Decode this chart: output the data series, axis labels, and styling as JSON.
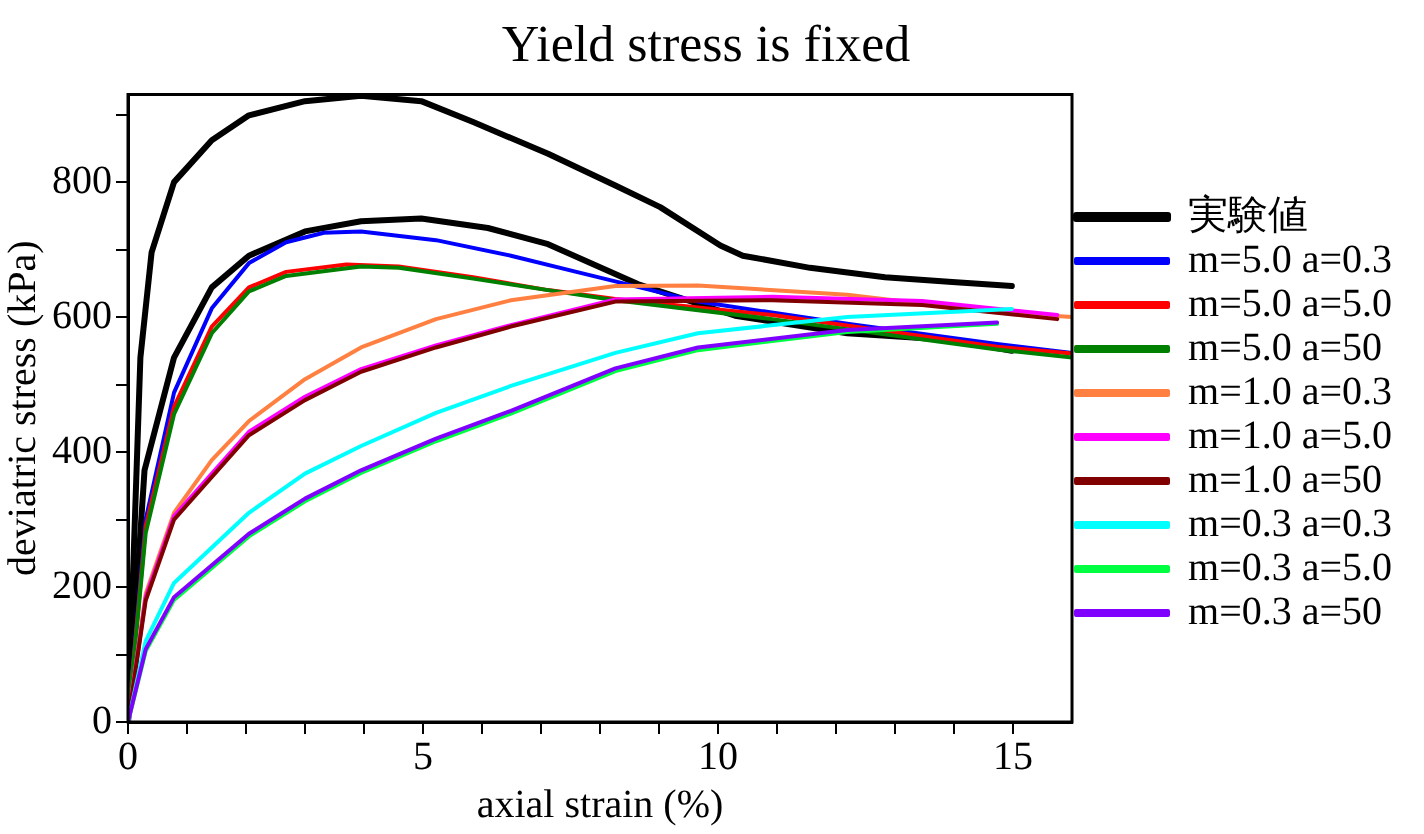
{
  "chart_data": {
    "type": "line",
    "title": "Yield stress is fixed",
    "xlabel": "axial strain (%)",
    "ylabel": "deviatric stress (kPa)",
    "xlim": [
      0,
      16
    ],
    "xticks": [
      0,
      {
        "value": 1,
        "label": null
      },
      {
        "value": 2,
        "label": null
      },
      {
        "value": 3,
        "label": null
      },
      {
        "value": 4,
        "label": null
      },
      5,
      {
        "value": 6,
        "label": null
      },
      {
        "value": 7,
        "label": null
      },
      {
        "value": 8,
        "label": null
      },
      {
        "value": 9,
        "label": null
      },
      10,
      {
        "value": 11,
        "label": null
      },
      {
        "value": 12,
        "label": null
      },
      {
        "value": 13,
        "label": null
      },
      {
        "value": 14,
        "label": null
      },
      15
    ],
    "ylim": [
      0,
      930
    ],
    "yticks": [
      0,
      {
        "value": 100,
        "label": null
      },
      200,
      {
        "value": 300,
        "label": null
      },
      400,
      {
        "value": 500,
        "label": null
      },
      600,
      {
        "value": 700,
        "label": null
      },
      800,
      {
        "value": 900,
        "label": null
      }
    ],
    "grid": false,
    "legend": "right",
    "marker": "none",
    "line_style": "solid",
    "series": [
      {
        "name": "実験値",
        "color": "#000000",
        "x": [
          0,
          0.21,
          0.4,
          0.78,
          1.42,
          2.05,
          3.0,
          3.95,
          4.97,
          5.85,
          7.12,
          8.26,
          9.02,
          10.04,
          10.42,
          11.56,
          12.83,
          13.97,
          14.98
        ],
        "values": [
          0,
          540,
          696,
          800,
          862,
          899,
          920,
          928,
          920,
          889,
          842,
          795,
          763,
          706,
          691,
          673,
          659,
          652,
          646
        ]
      },
      {
        "color": "#000000",
        "x": [
          0,
          0.28,
          0.78,
          1.42,
          2.05,
          3.0,
          3.95,
          4.97,
          6.1,
          7.12,
          8.64,
          10.29,
          12.19,
          13.97,
          14.98
        ],
        "values": [
          0,
          373,
          540,
          644,
          691,
          727,
          742,
          746,
          732,
          708,
          649,
          602,
          576,
          566,
          550
        ]
      },
      {
        "name": "m=5.0 a=0.3",
        "color": "#0000ff",
        "x": [
          0,
          0.3,
          0.78,
          1.42,
          2.05,
          2.68,
          3.32,
          3.95,
          5.22,
          6.49,
          7.6,
          9.66,
          12.19,
          14.73,
          16
        ],
        "values": [
          0,
          300,
          488,
          613,
          680,
          711,
          725,
          727,
          714,
          691,
          667,
          623,
          590,
          560,
          547
        ]
      },
      {
        "name": "m=5.0 a=5.0",
        "color": "#ff0000",
        "x": [
          0,
          0.3,
          0.78,
          1.42,
          2.05,
          2.68,
          3.7,
          4.59,
          5.85,
          7.12,
          8.26,
          10.92,
          14.73,
          16
        ],
        "values": [
          0,
          290,
          467,
          586,
          644,
          667,
          678,
          675,
          659,
          640,
          627,
          603,
          556,
          546
        ]
      },
      {
        "name": "m=5.0 a=50",
        "color": "#008000",
        "x": [
          0,
          0.3,
          0.78,
          1.42,
          2.05,
          2.68,
          3.95,
          4.59,
          5.85,
          7.12,
          8.26,
          10.92,
          14.73,
          16
        ],
        "values": [
          0,
          280,
          456,
          576,
          638,
          661,
          675,
          673,
          657,
          640,
          625,
          597,
          552,
          540
        ]
      },
      {
        "name": "m=1.0 a=0.3",
        "color": "#ff8040",
        "x": [
          0,
          0.3,
          0.78,
          1.42,
          2.05,
          3.0,
          3.95,
          5.22,
          6.49,
          8.26,
          9.66,
          12.19,
          14.73,
          16
        ],
        "values": [
          0,
          190,
          310,
          388,
          446,
          508,
          555,
          597,
          625,
          646,
          647,
          633,
          607,
          600
        ]
      },
      {
        "name": "m=1.0 a=5.0",
        "color": "#ff00ff",
        "x": [
          0,
          0.3,
          0.78,
          2.05,
          3.0,
          3.95,
          5.22,
          6.49,
          8.26,
          10.92,
          13.46,
          15.75
        ],
        "values": [
          0,
          185,
          305,
          430,
          482,
          523,
          558,
          588,
          626,
          630,
          624,
          603
        ]
      },
      {
        "name": "m=1.0 a=50",
        "color": "#800000",
        "x": [
          0,
          0.3,
          0.78,
          2.05,
          3.0,
          3.95,
          5.22,
          6.49,
          8.26,
          10.92,
          13.46,
          15.75
        ],
        "values": [
          0,
          180,
          300,
          425,
          477,
          519,
          555,
          586,
          623,
          625,
          618,
          597
        ]
      },
      {
        "name": "m=0.3 a=0.3",
        "color": "#00ffff",
        "x": [
          0,
          0.3,
          0.78,
          2.05,
          3.0,
          3.95,
          5.22,
          6.49,
          8.26,
          9.66,
          12.19,
          14.98
        ],
        "values": [
          0,
          120,
          206,
          310,
          368,
          409,
          458,
          498,
          547,
          576,
          600,
          612
        ]
      },
      {
        "name": "m=0.3 a=5.0",
        "color": "#00ff40",
        "x": [
          0,
          0.3,
          0.78,
          2.05,
          3.0,
          3.95,
          5.22,
          6.49,
          8.26,
          9.66,
          12.19,
          14.73
        ],
        "values": [
          0,
          105,
          181,
          275,
          327,
          369,
          416,
          457,
          520,
          551,
          578,
          590
        ]
      },
      {
        "name": "m=0.3 a=50",
        "color": "#8000ff",
        "x": [
          0,
          0.3,
          0.78,
          2.05,
          3.0,
          3.95,
          5.22,
          6.49,
          8.26,
          9.66,
          12.19,
          14.73
        ],
        "values": [
          0,
          108,
          185,
          279,
          331,
          373,
          420,
          461,
          524,
          555,
          581,
          592
        ]
      }
    ]
  }
}
